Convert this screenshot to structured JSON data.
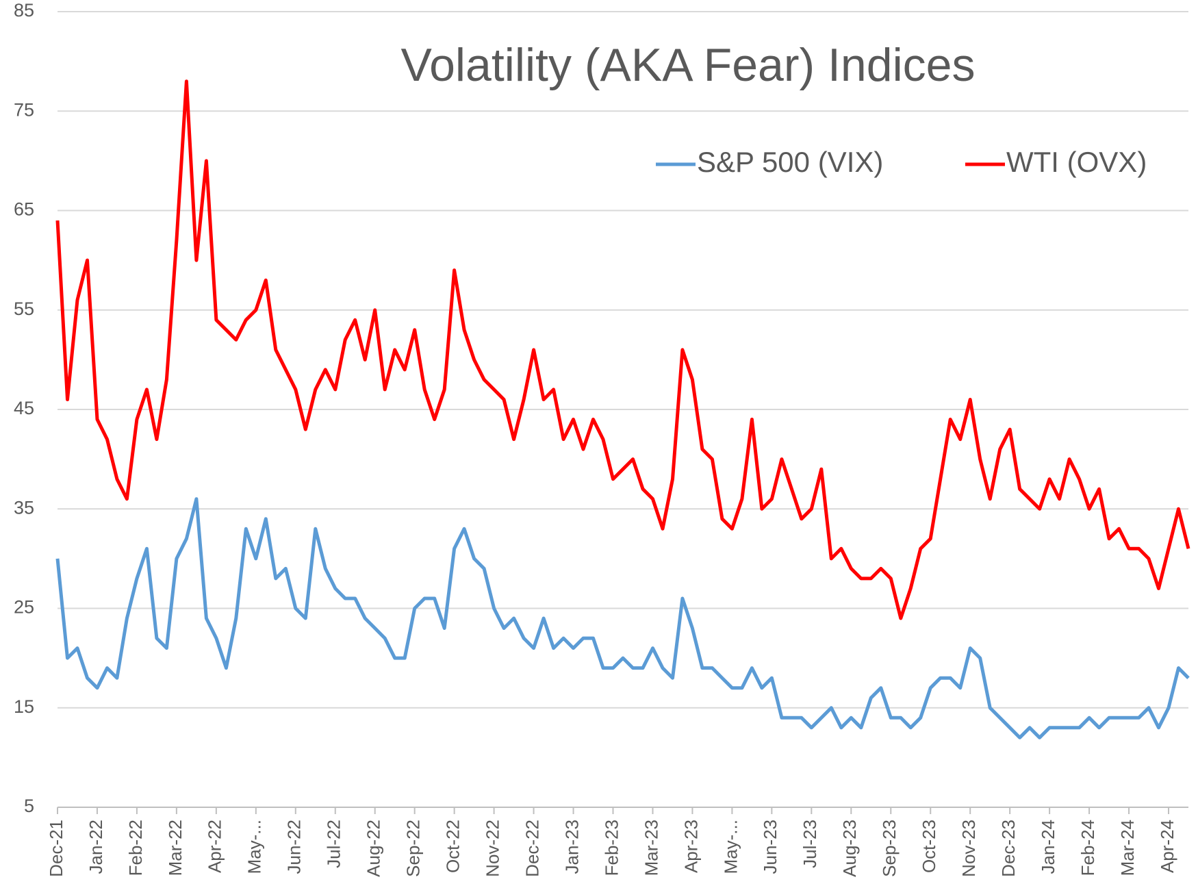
{
  "chart_data": {
    "type": "line",
    "title": "Volatility (AKA Fear) Indices",
    "categories": [
      "Dec-21",
      null,
      null,
      null,
      "Jan-22",
      null,
      null,
      null,
      "Feb-22",
      null,
      null,
      null,
      "Mar-22",
      null,
      null,
      null,
      "Apr-22",
      null,
      null,
      null,
      "May-...",
      null,
      null,
      null,
      "Jun-22",
      null,
      null,
      null,
      "Jul-22",
      null,
      null,
      null,
      "Aug-22",
      null,
      null,
      null,
      "Sep-22",
      null,
      null,
      null,
      "Oct-22",
      null,
      null,
      null,
      "Nov-22",
      null,
      null,
      null,
      "Dec-22",
      null,
      null,
      null,
      "Jan-23",
      null,
      null,
      null,
      "Feb-23",
      null,
      null,
      null,
      "Mar-23",
      null,
      null,
      null,
      "Apr-23",
      null,
      null,
      null,
      "May-...",
      null,
      null,
      null,
      "Jun-23",
      null,
      null,
      null,
      "Jul-23",
      null,
      null,
      null,
      "Aug-23",
      null,
      null,
      null,
      "Sep-23",
      null,
      null,
      null,
      "Oct-23",
      null,
      null,
      null,
      "Nov-23",
      null,
      null,
      null,
      "Dec-23",
      null,
      null,
      null,
      "Jan-24",
      null,
      null,
      null,
      "Feb-24",
      null,
      null,
      null,
      "Mar-24",
      null,
      null,
      null,
      "Apr-24",
      null,
      null
    ],
    "series": [
      {
        "name": "S&P 500 (VIX)",
        "color": "#5b9bd5",
        "values": [
          30,
          20,
          21,
          18,
          17,
          19,
          18,
          24,
          28,
          31,
          22,
          21,
          30,
          32,
          36,
          24,
          22,
          19,
          24,
          33,
          30,
          34,
          28,
          29,
          25,
          24,
          33,
          29,
          27,
          26,
          26,
          24,
          23,
          22,
          20,
          20,
          25,
          26,
          26,
          23,
          31,
          33,
          30,
          29,
          25,
          23,
          24,
          22,
          21,
          24,
          21,
          22,
          21,
          22,
          22,
          19,
          19,
          20,
          19,
          19,
          21,
          19,
          18,
          26,
          23,
          19,
          19,
          18,
          17,
          17,
          19,
          17,
          18,
          14,
          14,
          14,
          13,
          14,
          15,
          13,
          14,
          13,
          16,
          17,
          14,
          14,
          13,
          14,
          17,
          18,
          18,
          17,
          21,
          20,
          15,
          14,
          13,
          12,
          13,
          12,
          13,
          13,
          13,
          13,
          14,
          13,
          14,
          14,
          14,
          14,
          15,
          13,
          15,
          19,
          18
        ]
      },
      {
        "name": "WTI (OVX)",
        "color": "#ff0000",
        "values": [
          64,
          46,
          56,
          60,
          44,
          42,
          38,
          36,
          44,
          47,
          42,
          48,
          62,
          78,
          60,
          70,
          54,
          53,
          52,
          54,
          55,
          58,
          51,
          49,
          47,
          43,
          47,
          49,
          47,
          52,
          54,
          50,
          55,
          47,
          51,
          49,
          53,
          47,
          44,
          47,
          59,
          53,
          50,
          48,
          47,
          46,
          42,
          46,
          51,
          46,
          47,
          42,
          44,
          41,
          44,
          42,
          38,
          39,
          40,
          37,
          36,
          33,
          38,
          51,
          48,
          41,
          40,
          34,
          33,
          36,
          44,
          35,
          36,
          40,
          37,
          34,
          35,
          39,
          30,
          31,
          29,
          28,
          28,
          29,
          28,
          24,
          27,
          31,
          32,
          38,
          44,
          42,
          46,
          40,
          36,
          41,
          43,
          37,
          36,
          35,
          38,
          36,
          40,
          38,
          35,
          37,
          32,
          33,
          31,
          31,
          30,
          27,
          31,
          35,
          31
        ]
      }
    ],
    "ylim": [
      5,
      85
    ],
    "yticks": [
      5,
      15,
      25,
      35,
      45,
      55,
      65,
      75,
      85
    ],
    "grid": true,
    "legend": "top-right"
  }
}
